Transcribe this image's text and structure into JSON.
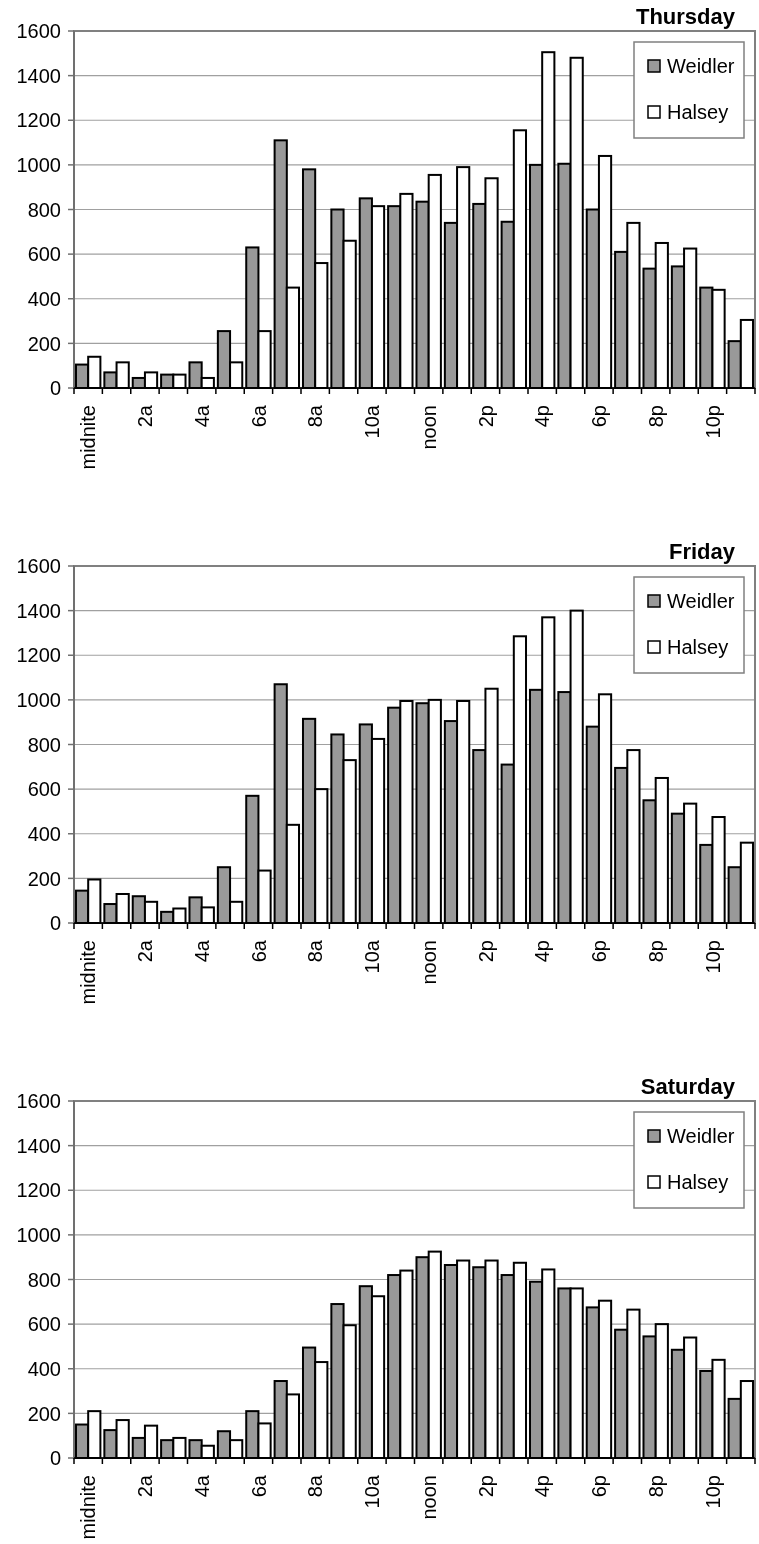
{
  "chart_data": [
    {
      "type": "bar",
      "title": "Thursday",
      "categories": [
        "midnite",
        null,
        "2a",
        null,
        "4a",
        null,
        "6a",
        null,
        "8a",
        null,
        "10a",
        null,
        "noon",
        null,
        "2p",
        null,
        "4p",
        null,
        "6p",
        null,
        "8p",
        null,
        "10p",
        null
      ],
      "series": [
        {
          "name": "Weidler",
          "color": "#999999",
          "values": [
            105,
            70,
            45,
            60,
            115,
            255,
            630,
            1110,
            980,
            800,
            850,
            815,
            835,
            740,
            825,
            745,
            1000,
            1005,
            800,
            610,
            535,
            545,
            450,
            210
          ]
        },
        {
          "name": "Halsey",
          "color": "#ffffff",
          "values": [
            140,
            115,
            70,
            60,
            45,
            115,
            255,
            450,
            560,
            660,
            815,
            870,
            955,
            990,
            940,
            1155,
            1505,
            1480,
            1040,
            740,
            650,
            625,
            440,
            305
          ]
        }
      ],
      "ylim": [
        0,
        1600
      ],
      "yticks": [
        0,
        200,
        400,
        600,
        800,
        1000,
        1200,
        1400,
        1600
      ],
      "grid": "y",
      "legend": "top right"
    },
    {
      "type": "bar",
      "title": "Friday",
      "categories": [
        "midnite",
        null,
        "2a",
        null,
        "4a",
        null,
        "6a",
        null,
        "8a",
        null,
        "10a",
        null,
        "noon",
        null,
        "2p",
        null,
        "4p",
        null,
        "6p",
        null,
        "8p",
        null,
        "10p",
        null
      ],
      "series": [
        {
          "name": "Weidler",
          "color": "#999999",
          "values": [
            145,
            85,
            120,
            50,
            115,
            250,
            570,
            1070,
            915,
            845,
            890,
            965,
            985,
            905,
            775,
            710,
            1045,
            1035,
            880,
            695,
            550,
            490,
            350,
            250
          ]
        },
        {
          "name": "Halsey",
          "color": "#ffffff",
          "values": [
            195,
            130,
            95,
            65,
            70,
            95,
            235,
            440,
            600,
            730,
            825,
            995,
            1000,
            995,
            1050,
            1285,
            1370,
            1400,
            1025,
            775,
            650,
            535,
            475,
            360
          ]
        }
      ],
      "ylim": [
        0,
        1600
      ],
      "yticks": [
        0,
        200,
        400,
        600,
        800,
        1000,
        1200,
        1400,
        1600
      ],
      "grid": "y",
      "legend": "top right"
    },
    {
      "type": "bar",
      "title": "Saturday",
      "categories": [
        "midnite",
        null,
        "2a",
        null,
        "4a",
        null,
        "6a",
        null,
        "8a",
        null,
        "10a",
        null,
        "noon",
        null,
        "2p",
        null,
        "4p",
        null,
        "6p",
        null,
        "8p",
        null,
        "10p",
        null
      ],
      "series": [
        {
          "name": "Weidler",
          "color": "#999999",
          "values": [
            150,
            125,
            90,
            80,
            80,
            120,
            210,
            345,
            495,
            690,
            770,
            820,
            900,
            865,
            855,
            820,
            790,
            760,
            675,
            575,
            545,
            485,
            390,
            265
          ]
        },
        {
          "name": "Halsey",
          "color": "#ffffff",
          "values": [
            210,
            170,
            145,
            90,
            55,
            80,
            155,
            285,
            430,
            595,
            725,
            840,
            925,
            885,
            885,
            875,
            845,
            760,
            705,
            665,
            600,
            540,
            440,
            345
          ]
        }
      ],
      "ylim": [
        0,
        1600
      ],
      "yticks": [
        0,
        200,
        400,
        600,
        800,
        1000,
        1200,
        1400,
        1600
      ],
      "grid": "y",
      "legend": "top right"
    }
  ]
}
